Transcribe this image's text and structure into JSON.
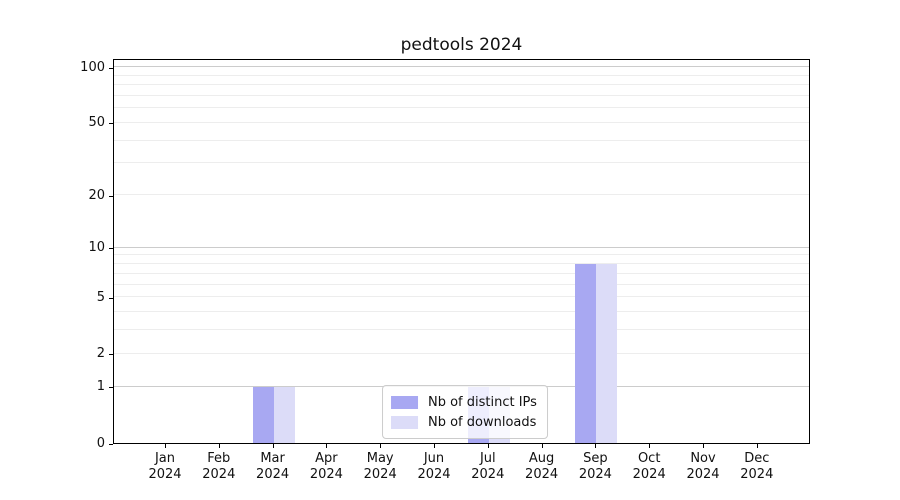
{
  "title": "pedtools 2024",
  "colors": {
    "ips": "#a8a8f2",
    "downloads": "#dcdcf8",
    "grid_minor": "#ededed",
    "grid_major": "#cccccc",
    "axis": "#000000"
  },
  "legend": {
    "items": [
      {
        "label": "Nb of distinct IPs",
        "color_key": "ips"
      },
      {
        "label": "Nb of downloads",
        "color_key": "downloads"
      }
    ]
  },
  "chart_data": {
    "type": "bar",
    "title": "pedtools 2024",
    "categories": [
      "Jan",
      "Feb",
      "Mar",
      "Apr",
      "May",
      "Jun",
      "Jul",
      "Aug",
      "Sep",
      "Oct",
      "Nov",
      "Dec"
    ],
    "category_year": "2024",
    "series": [
      {
        "name": "Nb of distinct IPs",
        "color_key": "ips",
        "values": [
          0,
          0,
          1,
          0,
          0,
          0,
          1,
          0,
          8,
          0,
          0,
          0
        ]
      },
      {
        "name": "Nb of downloads",
        "color_key": "downloads",
        "values": [
          0,
          0,
          1,
          0,
          0,
          0,
          1,
          0,
          8,
          0,
          0,
          0
        ]
      }
    ],
    "yscale": "log1p",
    "ylim": [
      0,
      112
    ],
    "ytick_labels": [
      0,
      1,
      2,
      5,
      10,
      20,
      50,
      100
    ],
    "grid_minor_values": [
      2,
      3,
      4,
      5,
      6,
      7,
      8,
      9,
      20,
      30,
      40,
      50,
      60,
      70,
      80,
      90
    ],
    "grid_major_values": [
      1,
      10,
      100
    ],
    "grid": "horizontal",
    "legend_position": "lower center"
  }
}
